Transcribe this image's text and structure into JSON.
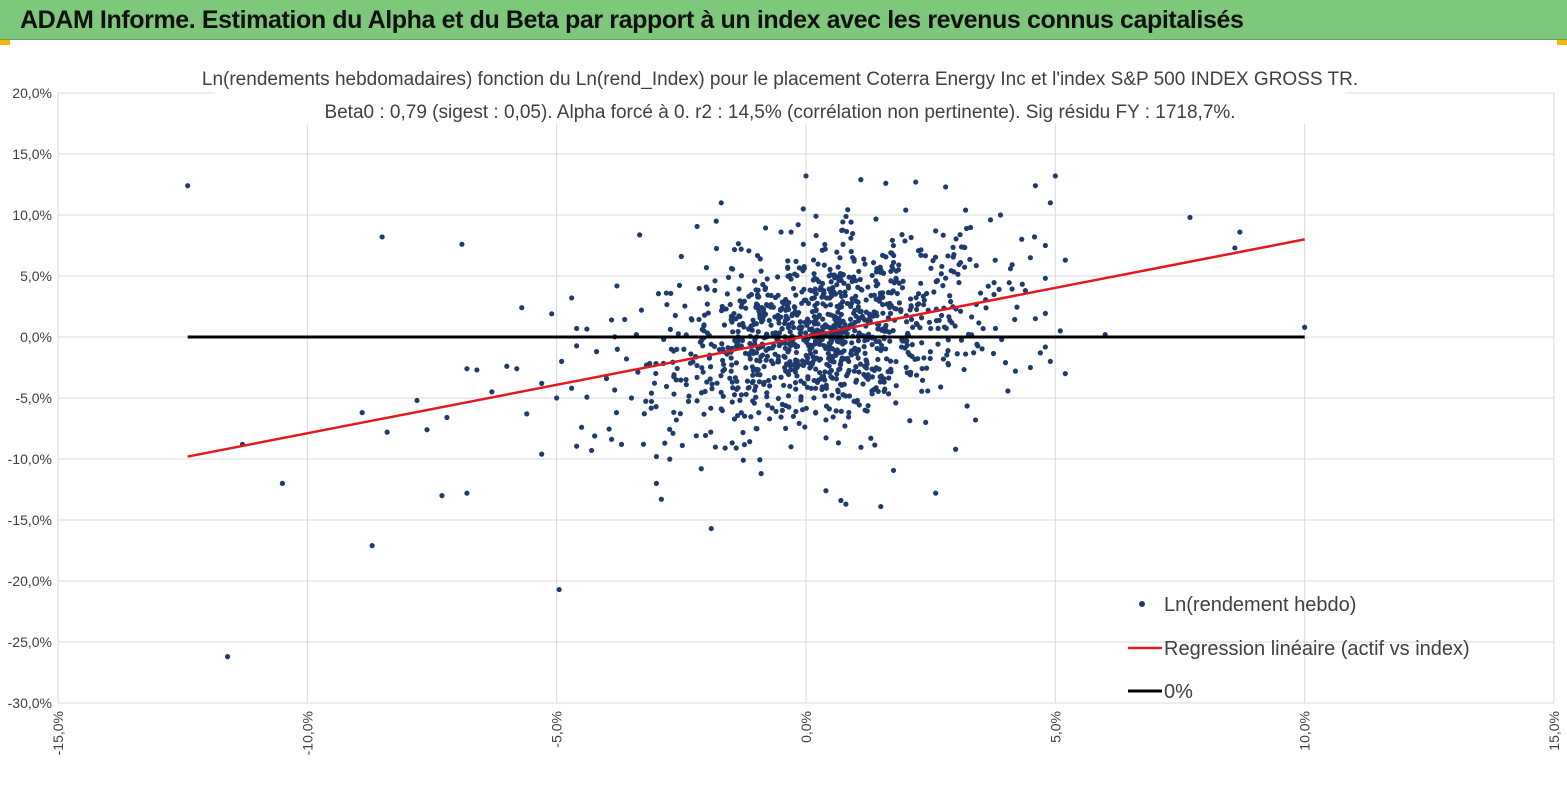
{
  "header": {
    "title": "ADAM Informe. Estimation du Alpha et du Beta par rapport à un index avec les revenus connus capitalisés"
  },
  "colors": {
    "header_bg": "#7ec87c",
    "accent": "#f2b705",
    "points": "#1f3b6e",
    "regression": "#e31a1c",
    "zero_line": "#000000",
    "grid": "#d9d9d9"
  },
  "chart_data": {
    "type": "scatter",
    "title": "Ln(rendements hebdomadaires) fonction du Ln(rend_Index) pour le placement Coterra Energy Inc et l'index S&P 500 INDEX GROSS TR.",
    "subtitle": "Beta0 : 0,79 (sigest : 0,05). Alpha forcé à 0. r2 : 14,5% (corrélation non pertinente). Sig résidu FY : 1718,7%.",
    "xlim": [
      -15,
      15
    ],
    "ylim": [
      -30,
      20
    ],
    "x_ticks": [
      "-15,0%",
      "-10,0%",
      "-5,0%",
      "0,0%",
      "5,0%",
      "10,0%",
      "15,0%"
    ],
    "y_ticks": [
      "20,0%",
      "15,0%",
      "10,0%",
      "5,0%",
      "0,0%",
      "-5,0%",
      "-10,0%",
      "-15,0%",
      "-20,0%",
      "-25,0%",
      "-30,0%"
    ],
    "grid": true,
    "legend_position": "bottom-right",
    "series": [
      {
        "name": "Ln(rendement hebdo)",
        "kind": "scatter",
        "points": [
          [
            -12.4,
            12.4
          ],
          [
            -11.6,
            -26.2
          ],
          [
            -11.3,
            -8.8
          ],
          [
            -10.5,
            -12.0
          ],
          [
            -8.9,
            -6.2
          ],
          [
            -8.7,
            -17.1
          ],
          [
            -8.5,
            8.2
          ],
          [
            -8.4,
            -7.8
          ],
          [
            -7.8,
            -5.2
          ],
          [
            -7.6,
            -7.6
          ],
          [
            -7.3,
            -13.0
          ],
          [
            -7.2,
            -6.6
          ],
          [
            -6.9,
            7.6
          ],
          [
            -6.8,
            -2.6
          ],
          [
            -6.8,
            -12.8
          ],
          [
            -6.6,
            -2.7
          ],
          [
            -6.3,
            -4.5
          ],
          [
            -6.0,
            -2.4
          ],
          [
            -5.8,
            -2.6
          ],
          [
            -5.7,
            2.4
          ],
          [
            -5.6,
            -6.3
          ],
          [
            -5.3,
            -3.8
          ],
          [
            -5.3,
            -9.6
          ],
          [
            -5.1,
            1.9
          ],
          [
            -5.0,
            -5.0
          ],
          [
            -4.9,
            -2.0
          ],
          [
            -4.7,
            3.2
          ],
          [
            -4.7,
            -4.2
          ],
          [
            -4.95,
            -20.7
          ],
          [
            -4.6,
            0.7
          ],
          [
            -4.5,
            -7.4
          ],
          [
            -4.3,
            -9.3
          ],
          [
            -4.2,
            -1.2
          ],
          [
            -4.0,
            -3.4
          ],
          [
            -3.9,
            1.4
          ],
          [
            -3.8,
            -6.2
          ],
          [
            -3.7,
            -8.8
          ],
          [
            -3.6,
            -1.8
          ],
          [
            -3.5,
            -5.0
          ],
          [
            -3.4,
            0.2
          ],
          [
            -3.3,
            2.2
          ],
          [
            -3.2,
            -2.3
          ],
          [
            -3.1,
            -4.6
          ],
          [
            -3.0,
            -9.8
          ],
          [
            -3.0,
            -12.0
          ],
          [
            -2.9,
            -13.3
          ],
          [
            -2.8,
            3.6
          ],
          [
            -2.7,
            -1.0
          ],
          [
            -2.6,
            -6.8
          ],
          [
            -2.5,
            6.6
          ],
          [
            -2.4,
            -3.9
          ],
          [
            -2.3,
            1.5
          ],
          [
            -2.2,
            -8.1
          ],
          [
            -2.1,
            -10.8
          ],
          [
            -2.0,
            4.1
          ],
          [
            -1.9,
            -15.7
          ],
          [
            -1.9,
            -0.6
          ],
          [
            -1.8,
            9.5
          ],
          [
            -1.7,
            11.0
          ],
          [
            -1.7,
            -5.9
          ],
          [
            -1.6,
            2.3
          ],
          [
            -1.5,
            -2.8
          ],
          [
            -1.4,
            -9.1
          ],
          [
            -1.3,
            7.2
          ],
          [
            -1.2,
            -4.7
          ],
          [
            -1.1,
            0.9
          ],
          [
            -1.0,
            -7.5
          ],
          [
            -0.9,
            5.4
          ],
          [
            -0.9,
            -11.2
          ],
          [
            -0.8,
            -1.9
          ],
          [
            -0.7,
            3.4
          ],
          [
            -0.6,
            -6.1
          ],
          [
            -0.5,
            8.6
          ],
          [
            -0.5,
            -3.3
          ],
          [
            -0.4,
            1.7
          ],
          [
            -0.3,
            -9.0
          ],
          [
            -0.2,
            6.2
          ],
          [
            -0.2,
            -0.8
          ],
          [
            -0.1,
            -4.9
          ],
          [
            0.0,
            3.0
          ],
          [
            0.0,
            13.2
          ],
          [
            0.1,
            -2.4
          ],
          [
            0.2,
            9.9
          ],
          [
            0.3,
            0.4
          ],
          [
            0.4,
            -12.6
          ],
          [
            0.4,
            -6.8
          ],
          [
            0.5,
            5.1
          ],
          [
            0.6,
            -1.5
          ],
          [
            0.7,
            2.6
          ],
          [
            0.7,
            -13.4
          ],
          [
            0.8,
            -13.7
          ],
          [
            0.9,
            8.1
          ],
          [
            1.0,
            -3.7
          ],
          [
            1.1,
            12.9
          ],
          [
            1.2,
            0.9
          ],
          [
            1.3,
            -8.3
          ],
          [
            1.4,
            4.6
          ],
          [
            1.5,
            -1.1
          ],
          [
            1.5,
            -13.9
          ],
          [
            1.6,
            12.6
          ],
          [
            1.7,
            6.9
          ],
          [
            1.8,
            -5.4
          ],
          [
            1.9,
            2.1
          ],
          [
            2.0,
            10.4
          ],
          [
            2.1,
            -2.9
          ],
          [
            2.2,
            12.7
          ],
          [
            2.3,
            4.4
          ],
          [
            2.4,
            -7.0
          ],
          [
            2.5,
            0.7
          ],
          [
            2.6,
            -12.8
          ],
          [
            2.6,
            8.7
          ],
          [
            2.7,
            -4.1
          ],
          [
            2.8,
            12.3
          ],
          [
            2.9,
            2.9
          ],
          [
            3.0,
            -9.2
          ],
          [
            3.1,
            6.1
          ],
          [
            3.2,
            10.4
          ],
          [
            3.2,
            -1.4
          ],
          [
            3.4,
            -6.8
          ],
          [
            3.5,
            3.6
          ],
          [
            3.7,
            9.6
          ],
          [
            3.8,
            0.7
          ],
          [
            3.9,
            10.0
          ],
          [
            4.0,
            -2.1
          ],
          [
            4.1,
            5.6
          ],
          [
            4.2,
            -2.8
          ],
          [
            4.4,
            3.8
          ],
          [
            4.5,
            6.5
          ],
          [
            4.5,
            -2.5
          ],
          [
            4.6,
            12.4
          ],
          [
            4.6,
            1.5
          ],
          [
            4.7,
            -1.3
          ],
          [
            4.8,
            7.5
          ],
          [
            4.9,
            11.0
          ],
          [
            4.9,
            -2.0
          ],
          [
            5.0,
            13.2
          ],
          [
            5.1,
            0.5
          ],
          [
            5.2,
            6.3
          ],
          [
            5.2,
            -3.0
          ],
          [
            6.0,
            0.2
          ],
          [
            7.7,
            9.8
          ],
          [
            8.6,
            7.3
          ],
          [
            8.7,
            8.6
          ],
          [
            10.0,
            0.8
          ]
        ],
        "cloud": {
          "count": 1100,
          "x_mean": 0.3,
          "x_sd": 1.55,
          "slope": 0.79,
          "resid_sd": 3.4
        }
      },
      {
        "name": "Regression linéaire (actif vs index)",
        "kind": "line",
        "x": [
          -12.4,
          10.0
        ],
        "y": [
          -9.8,
          8.0
        ]
      },
      {
        "name": "0%",
        "kind": "line",
        "x": [
          -12.4,
          10.0
        ],
        "y": [
          0.0,
          0.0
        ]
      }
    ]
  }
}
